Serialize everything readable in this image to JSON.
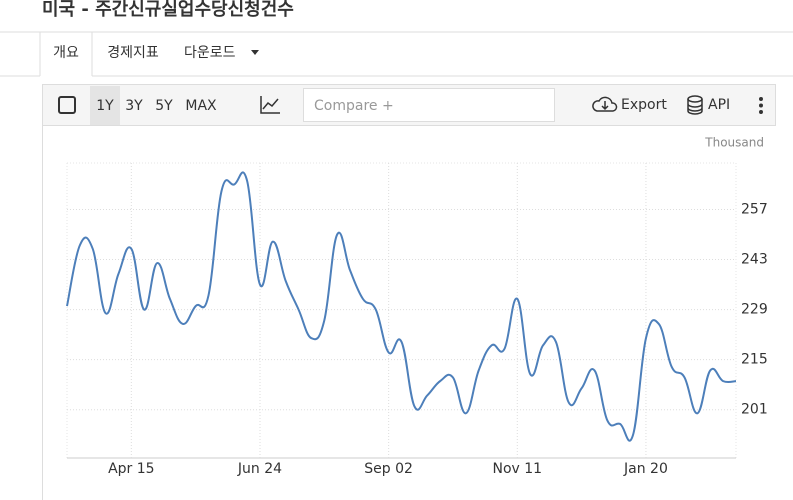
{
  "header": {
    "title": "미국 - 주간신규실업수당신청건수"
  },
  "tabs": [
    "개요",
    "경제지표",
    "다운로드"
  ],
  "toolbar": {
    "ranges": [
      "1Y",
      "3Y",
      "5Y",
      "MAX"
    ],
    "compare_placeholder": "Compare +",
    "export": "Export",
    "api": "API"
  },
  "chart_data": {
    "type": "line",
    "unit_label": "Thousand",
    "categories": [
      null,
      null,
      null,
      null,
      null,
      "Apr 15",
      null,
      null,
      null,
      null,
      null,
      null,
      null,
      null,
      null,
      "Jun 24",
      null,
      null,
      null,
      null,
      null,
      null,
      null,
      null,
      null,
      "Sep 02",
      null,
      null,
      null,
      null,
      null,
      null,
      null,
      null,
      null,
      "Nov 11",
      null,
      null,
      null,
      null,
      null,
      null,
      null,
      null,
      null,
      "Jan 20",
      null,
      null,
      null,
      null,
      null,
      null,
      null
    ],
    "series": [
      {
        "color": "#4d7fba",
        "values": [
          230,
          247,
          246,
          228,
          239,
          246,
          229,
          242,
          232,
          225,
          230,
          233,
          262,
          264,
          265,
          236,
          248,
          237,
          229,
          221,
          226,
          250,
          240,
          232,
          229,
          217,
          220,
          202,
          205,
          209,
          210,
          200,
          212,
          219,
          218,
          232,
          211,
          219,
          220,
          203,
          207,
          212,
          198,
          197,
          194,
          221,
          225,
          213,
          210,
          200,
          212,
          209,
          209
        ]
      }
    ],
    "ylim": [
      187.5,
      270
    ],
    "yticks": [
      201,
      215,
      229,
      243,
      257
    ],
    "grid": true
  }
}
